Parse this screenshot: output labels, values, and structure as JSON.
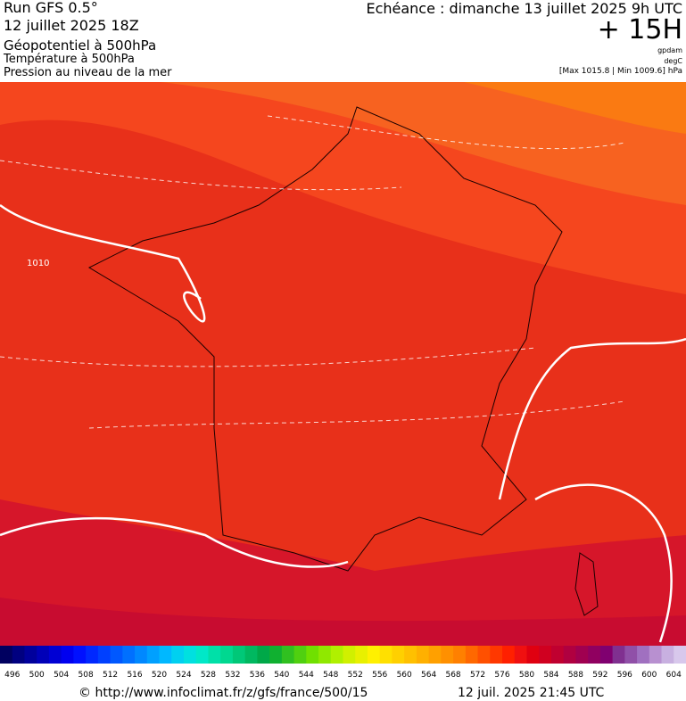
{
  "header": {
    "run": "Run GFS 0.5°",
    "run_date": "12 juillet 2025 18Z",
    "field1": "Géopotentiel à 500hPa",
    "field2": "Température à 500hPa",
    "field3": "Pression au niveau de la mer",
    "valid_time": "Echéance : dimanche 13 juillet 2025 9h UTC",
    "lead": "+ 15H",
    "unit1": "gpdam",
    "unit2": "degC",
    "pressure_range": "[Max 1015.8 | Min 1009.6] hPa"
  },
  "map": {
    "contour_label": "1010"
  },
  "colorbar": {
    "labels": [
      496,
      500,
      504,
      508,
      512,
      516,
      520,
      524,
      528,
      532,
      536,
      540,
      544,
      548,
      552,
      556,
      560,
      564,
      568,
      572,
      576,
      580,
      584,
      588,
      592,
      596,
      600,
      604
    ],
    "colors": [
      "#000060",
      "#000080",
      "#00009c",
      "#0000b8",
      "#0000d4",
      "#0000f0",
      "#0010ff",
      "#0028ff",
      "#0040ff",
      "#0058ff",
      "#0070ff",
      "#0088ff",
      "#00a0ff",
      "#00b8ff",
      "#00d0f0",
      "#00e0e0",
      "#00e8c8",
      "#00e0a8",
      "#00d890",
      "#00c878",
      "#00b860",
      "#00a848",
      "#10b030",
      "#30c020",
      "#50d010",
      "#70e000",
      "#90e800",
      "#b0f000",
      "#d0f000",
      "#e8f000",
      "#fff000",
      "#ffe000",
      "#ffd000",
      "#ffc000",
      "#ffb000",
      "#ffa000",
      "#ff9000",
      "#ff8000",
      "#ff6800",
      "#ff5000",
      "#ff3800",
      "#ff2000",
      "#f01010",
      "#e00010",
      "#d00020",
      "#c00030",
      "#b00040",
      "#a00050",
      "#900060",
      "#800070",
      "#803090",
      "#9050a8",
      "#a070c0",
      "#b890d0",
      "#c8b0e0",
      "#d8c8ec"
    ]
  },
  "footer": {
    "url": "© http://www.infoclimat.fr/z/gfs/france/500/15",
    "timestamp": "12 juil. 2025 21:45 UTC"
  }
}
